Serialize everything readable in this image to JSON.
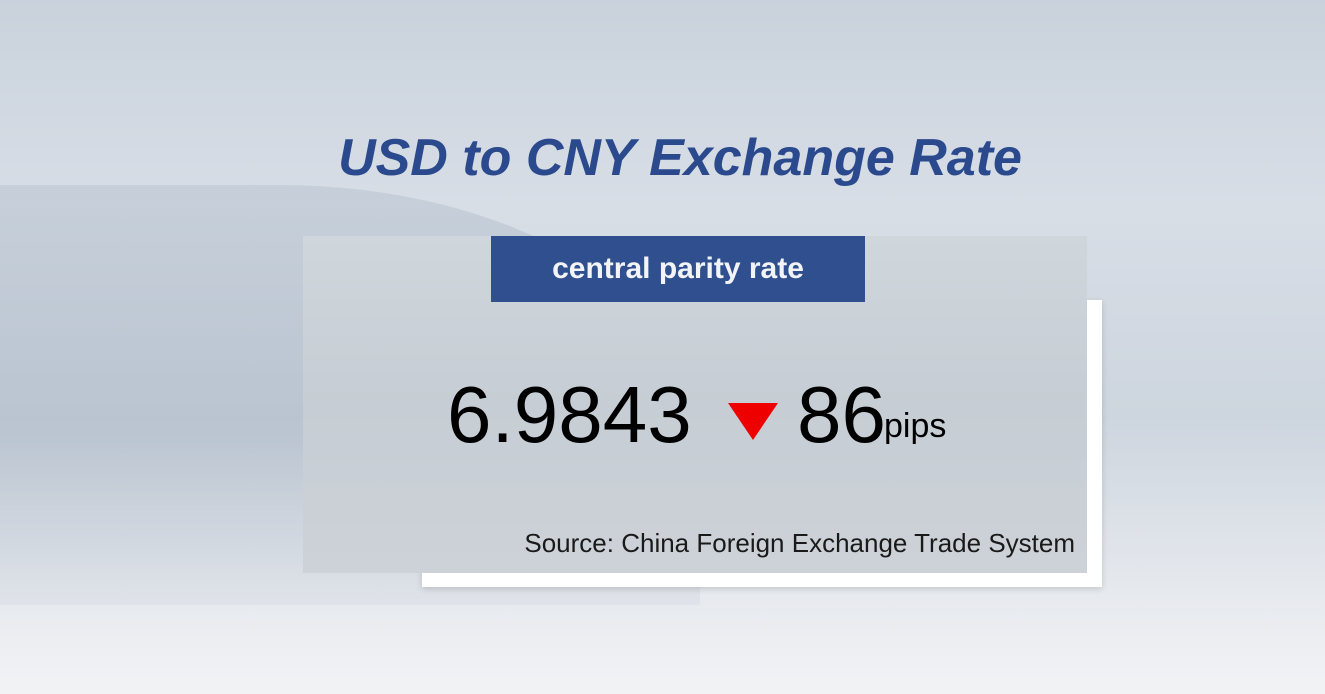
{
  "title": "USD to CNY Exchange Rate",
  "badge": "central parity rate",
  "rate": "6.9843",
  "change": {
    "direction": "down",
    "icon": "down-triangle-icon",
    "value": "86",
    "unit": "pips",
    "color": "#ee0000"
  },
  "source": "Source: China Foreign Exchange Trade System",
  "colors": {
    "title": "#2b4a8e",
    "badge": "#2f4f8f"
  }
}
